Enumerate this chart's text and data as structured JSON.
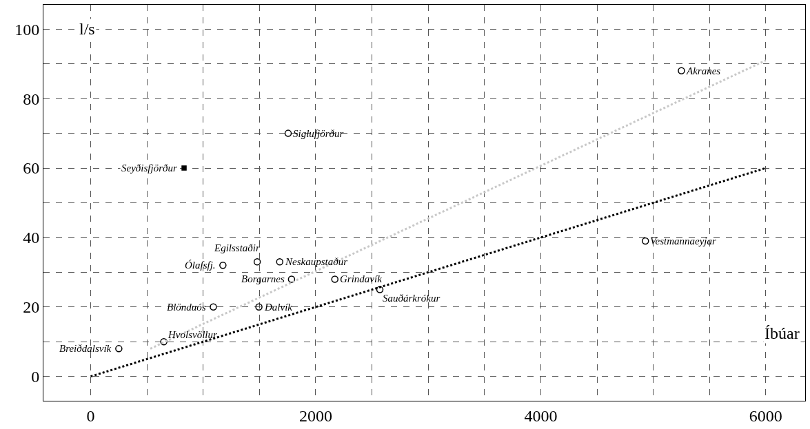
{
  "chart_data": {
    "type": "scatter",
    "xlabel": "Íbúar",
    "ylabel": "l/s",
    "x": [
      250,
      650,
      1090,
      1175,
      1480,
      1680,
      1785,
      1495,
      2170,
      2570,
      1755,
      5250,
      4930,
      830
    ],
    "series": [
      {
        "color": "#000000",
        "marker": "circle",
        "values": [
          8,
          10,
          20,
          32,
          33,
          33,
          28,
          20,
          28,
          25,
          70,
          88,
          39,
          null
        ]
      },
      {
        "color": "#000000",
        "marker": "square",
        "values": [
          null,
          null,
          null,
          null,
          null,
          null,
          null,
          null,
          null,
          null,
          null,
          null,
          null,
          60
        ]
      },
      {
        "type": "line",
        "color": "#000000",
        "line_style": "dotted",
        "x": [
          0,
          6000
        ],
        "values": [
          0,
          60
        ]
      },
      {
        "type": "line",
        "color": "#c8c8c8",
        "line_style": "dotted",
        "x": [
          530,
          6000
        ],
        "values": [
          8,
          91
        ]
      }
    ],
    "annotations": [
      {
        "text": "Breiðdalsvík",
        "x": 250,
        "y": 8
      },
      {
        "text": "Hvolsvöllur",
        "x": 650,
        "y": 10
      },
      {
        "text": "Blönduós",
        "x": 1090,
        "y": 20
      },
      {
        "text": "Ólafsfj.",
        "x": 1175,
        "y": 32
      },
      {
        "text": "Egilsstaðir",
        "x": 1480,
        "y": 33
      },
      {
        "text": "Neskaupstaður",
        "x": 1680,
        "y": 33
      },
      {
        "text": "Borgarnes",
        "x": 1785,
        "y": 28
      },
      {
        "text": "Dalvík",
        "x": 1495,
        "y": 20
      },
      {
        "text": "Grindavík",
        "x": 2170,
        "y": 28
      },
      {
        "text": "Sauðárkrókur",
        "x": 2570,
        "y": 25
      },
      {
        "text": "Siglufjörður",
        "x": 1755,
        "y": 70
      },
      {
        "text": "Akranes",
        "x": 5250,
        "y": 88
      },
      {
        "text": "Vestmannaeyjar",
        "x": 4930,
        "y": 39
      },
      {
        "text": "Seyðisfjörður",
        "x": 830,
        "y": 60
      }
    ],
    "xlim": [
      -420,
      6350
    ],
    "xticks": [
      0,
      {
        "value": 500,
        "label": null
      },
      {
        "value": 1000,
        "label": null
      },
      {
        "value": 1500,
        "label": null
      },
      2000,
      {
        "value": 2500,
        "label": null
      },
      {
        "value": 3000,
        "label": null
      },
      {
        "value": 3500,
        "label": null
      },
      4000,
      {
        "value": 4500,
        "label": null
      },
      {
        "value": 5000,
        "label": null
      },
      {
        "value": 5500,
        "label": null
      },
      6000
    ],
    "ylim": [
      -7,
      107
    ],
    "yticks": [
      0,
      {
        "value": 10,
        "label": null
      },
      20,
      {
        "value": 30,
        "label": null
      },
      40,
      {
        "value": 50,
        "label": null
      },
      60,
      {
        "value": 70,
        "label": null
      },
      80,
      {
        "value": 90,
        "label": null
      },
      100
    ],
    "grid": true
  }
}
